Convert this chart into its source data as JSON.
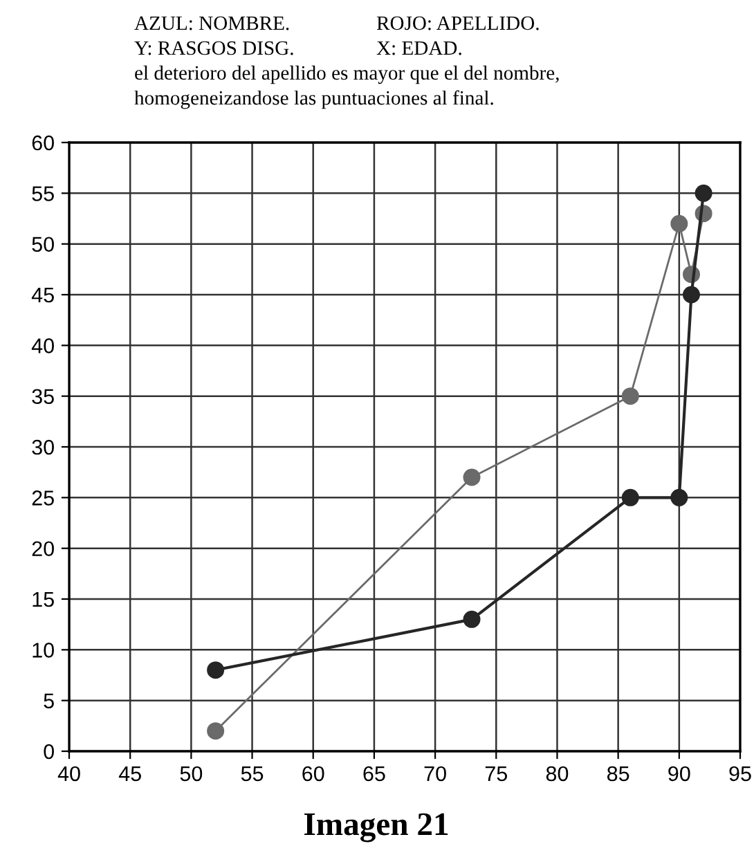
{
  "chart_data": {
    "type": "line",
    "x": [
      52,
      73,
      86,
      90,
      91,
      92
    ],
    "series": [
      {
        "color": "#6a6a6a",
        "values": [
          2,
          27,
          35,
          52,
          47,
          53
        ]
      },
      {
        "color": "#262626",
        "values": [
          8,
          13,
          25,
          25,
          45,
          55
        ]
      }
    ],
    "xlim": [
      40,
      95
    ],
    "xticks": [
      40,
      45,
      50,
      55,
      60,
      65,
      70,
      75,
      80,
      85,
      90,
      95
    ],
    "ylim": [
      0,
      60
    ],
    "yticks": [
      0,
      5,
      10,
      15,
      20,
      25,
      30,
      35,
      40,
      45,
      50,
      55,
      60
    ],
    "grid": true,
    "marker": "circle",
    "line_style": "solid",
    "annotations": [
      "AZUL: NOMBRE.",
      "ROJO: APELLIDO.",
      "Y: RASGOS DISG.",
      "X: EDAD.",
      "el deterioro del apellido es mayor que el del nombre,",
      "homogeneizandose las puntuaciones al final.",
      "Imagen 21"
    ]
  }
}
